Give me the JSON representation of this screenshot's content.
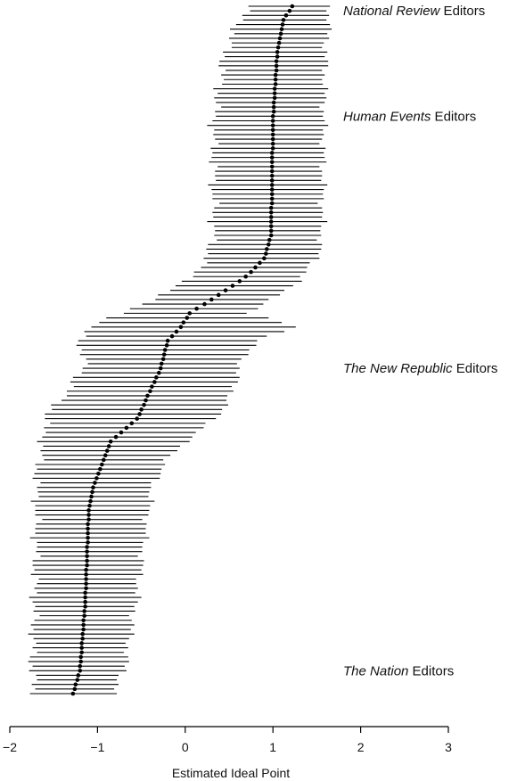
{
  "chart_data": {
    "type": "scatter",
    "subtype": "dot-and-interval",
    "xlabel": "Estimated Ideal Point",
    "xlim": [
      -2,
      3
    ],
    "xticks": [
      -2,
      -1,
      0,
      1,
      2,
      3
    ],
    "xtick_labels": [
      "−2",
      "−1",
      "0",
      "1",
      "2",
      "3"
    ],
    "grid": false,
    "n_points": 151,
    "annotations": [
      {
        "italic": "National Review",
        "rest": " Editors",
        "rank": 1
      },
      {
        "italic": "Human Events",
        "rest": " Editors",
        "rank": 24
      },
      {
        "italic": "The New Republic",
        "rest": " Editors",
        "rank": 79
      },
      {
        "italic": "The Nation",
        "rest": " Editors",
        "rank": 145
      }
    ],
    "anchors": [
      {
        "rank": 0,
        "point": 1.22,
        "lower": 0.72,
        "upper": 1.65
      },
      {
        "rank": 3,
        "point": 1.12,
        "lower": 0.62,
        "upper": 1.64
      },
      {
        "rank": 10,
        "point": 1.05,
        "lower": 0.45,
        "upper": 1.6
      },
      {
        "rank": 25,
        "point": 1.0,
        "lower": 0.32,
        "upper": 1.58
      },
      {
        "rank": 50,
        "point": 0.98,
        "lower": 0.32,
        "upper": 1.56
      },
      {
        "rank": 55,
        "point": 0.9,
        "lower": 0.25,
        "upper": 1.5
      },
      {
        "rank": 58,
        "point": 0.75,
        "lower": 0.1,
        "upper": 1.38
      },
      {
        "rank": 60,
        "point": 0.62,
        "lower": 0.02,
        "upper": 1.28
      },
      {
        "rank": 64,
        "point": 0.3,
        "lower": -0.4,
        "upper": 1.0
      },
      {
        "rank": 67,
        "point": 0.05,
        "lower": -0.7,
        "upper": 0.7
      },
      {
        "rank": 70,
        "point": -0.05,
        "lower": -1.12,
        "upper": 1.3
      },
      {
        "rank": 73,
        "point": -0.2,
        "lower": -1.2,
        "upper": 0.8
      },
      {
        "rank": 79,
        "point": -0.28,
        "lower": -1.15,
        "upper": 0.6
      },
      {
        "rank": 84,
        "point": -0.4,
        "lower": -1.35,
        "upper": 0.55
      },
      {
        "rank": 90,
        "point": -0.55,
        "lower": -1.6,
        "upper": 0.35
      },
      {
        "rank": 95,
        "point": -0.85,
        "lower": -1.62,
        "upper": 0.0
      },
      {
        "rank": 100,
        "point": -0.95,
        "lower": -1.68,
        "upper": -0.25
      },
      {
        "rank": 105,
        "point": -1.05,
        "lower": -1.7,
        "upper": -0.38
      },
      {
        "rank": 110,
        "point": -1.1,
        "lower": -1.7,
        "upper": -0.42
      },
      {
        "rank": 130,
        "point": -1.14,
        "lower": -1.72,
        "upper": -0.56
      },
      {
        "rank": 145,
        "point": -1.2,
        "lower": -1.75,
        "upper": -0.7
      },
      {
        "rank": 150,
        "point": -1.28,
        "lower": -1.72,
        "upper": -0.82
      }
    ],
    "points": []
  }
}
